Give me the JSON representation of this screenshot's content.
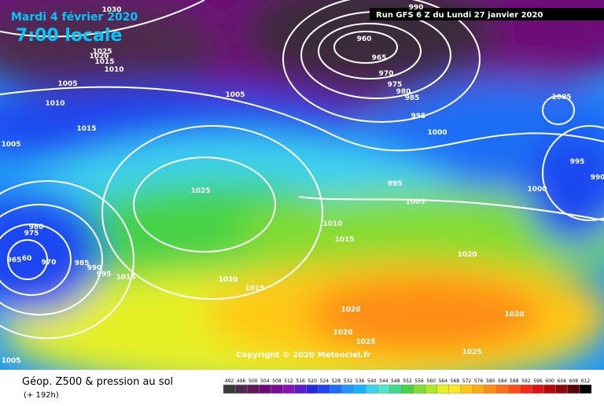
{
  "header": {
    "date": "Mardi 4 février 2020",
    "time": "7:00 locale",
    "run": "Run GFS 6 Z du Lundi 27 janvier 2020"
  },
  "copyright": "Copyright © 2020 Meteociel.fr",
  "footer": {
    "title": "Géop. Z500 & pression au sol",
    "lead": "(+ 192h)"
  },
  "colorbar": {
    "ticks": [
      492,
      496,
      500,
      504,
      508,
      512,
      516,
      520,
      524,
      528,
      532,
      536,
      540,
      544,
      548,
      552,
      556,
      560,
      564,
      568,
      572,
      576,
      580,
      584,
      588,
      592,
      596,
      600,
      604,
      608,
      612
    ],
    "colors": [
      "#3a3a3a",
      "#4d2a4d",
      "#5c1a5c",
      "#6e0a78",
      "#7d0a96",
      "#8a14b4",
      "#5a1ec8",
      "#2828dc",
      "#1e46f0",
      "#1e6ef5",
      "#1e96fa",
      "#14b4ff",
      "#3cd2f0",
      "#50e6c8",
      "#3cdc8c",
      "#46d246",
      "#82dc32",
      "#b4e628",
      "#e6f028",
      "#ffe61e",
      "#ffc814",
      "#ffaa14",
      "#ff8c14",
      "#ff6e14",
      "#ff5014",
      "#f52814",
      "#dc1414",
      "#b40a0a",
      "#8c0a0a",
      "#5a0505",
      "#000000"
    ]
  },
  "isobar_labels": [
    "1030",
    "1025",
    "1020",
    "1015",
    "1010",
    "1005",
    "1010",
    "1015",
    "1005",
    "990",
    "960",
    "965",
    "970",
    "975",
    "980",
    "985",
    "995",
    "1000",
    "1005",
    "1005",
    "995",
    "990",
    "1000",
    "995",
    "1005",
    "1025",
    "1010",
    "1015",
    "1020",
    "980",
    "975",
    "965",
    "60",
    "970",
    "985",
    "990",
    "995",
    "1015",
    "1020",
    "1015",
    "1020",
    "1020",
    "1020",
    "1025",
    "1025",
    "1005"
  ]
}
